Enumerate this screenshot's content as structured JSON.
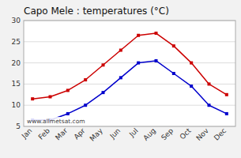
{
  "chart_data": {
    "type": "line",
    "title": "Capo Mele : temperatures (°C)",
    "categories": [
      "Jan",
      "Feb",
      "Mar",
      "Apr",
      "May",
      "Jun",
      "Jul",
      "Aug",
      "Sep",
      "Oct",
      "Nov",
      "Dec"
    ],
    "series": [
      {
        "color": "#cc0000",
        "values": [
          11.5,
          12.0,
          13.5,
          16.0,
          19.5,
          23.0,
          26.5,
          27.0,
          24.0,
          20.0,
          15.0,
          12.5
        ]
      },
      {
        "color": "#0000cc",
        "values": [
          6.5,
          6.5,
          8.0,
          10.0,
          13.0,
          16.5,
          20.0,
          20.5,
          17.5,
          14.5,
          10.0,
          8.0
        ]
      }
    ],
    "ylim": [
      5,
      30
    ],
    "yticks": [
      5,
      10,
      15,
      20,
      25,
      30
    ],
    "grid": true,
    "marker": "square",
    "annotations": [
      "www.allmetsat.com"
    ]
  }
}
